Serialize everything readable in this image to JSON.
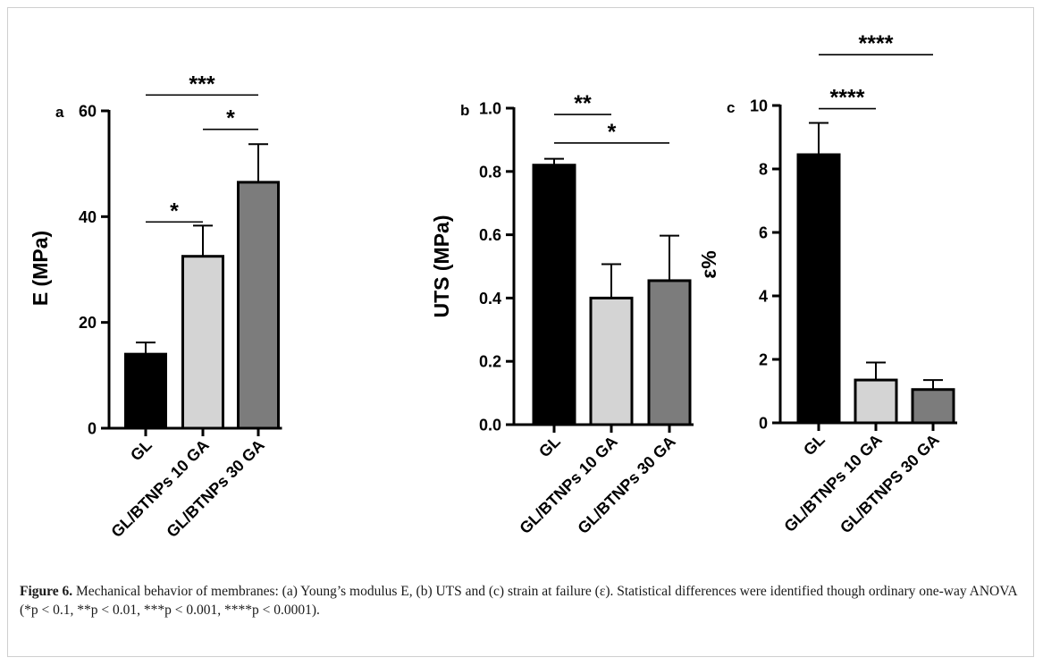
{
  "chart_data": [
    {
      "type": "bar",
      "panel_label": "a",
      "categories": [
        "GL",
        "GL/BTNPs 10 GA",
        "GL/BTNPs 30 GA"
      ],
      "values": [
        14,
        32.5,
        46.5
      ],
      "errors": [
        2.2,
        5.8,
        7.2
      ],
      "colors": [
        "#000000",
        "#d4d4d4",
        "#7c7c7c"
      ],
      "ylabel": "E (MPa)",
      "ylim": [
        0,
        60
      ],
      "yticks": [
        0,
        20,
        40,
        60
      ],
      "ytick_labels": [
        "0",
        "20",
        "40",
        "60"
      ],
      "significance": [
        {
          "from": 0,
          "to": 1,
          "label": "*",
          "level": 39
        },
        {
          "from": 1,
          "to": 2,
          "label": "*",
          "level": 56.5
        },
        {
          "from": 0,
          "to": 2,
          "label": "***",
          "level": 63
        }
      ]
    },
    {
      "type": "bar",
      "panel_label": "b",
      "categories": [
        "GL",
        "GL/BTNPs 10 GA",
        "GL/BTNPs 30 GA"
      ],
      "values": [
        0.82,
        0.4,
        0.455
      ],
      "errors": [
        0.02,
        0.107,
        0.142
      ],
      "colors": [
        "#000000",
        "#d4d4d4",
        "#7c7c7c"
      ],
      "ylabel": "UTS (MPa)",
      "ylim": [
        0,
        1.0
      ],
      "yticks": [
        0,
        0.2,
        0.4,
        0.6,
        0.8,
        1.0
      ],
      "ytick_labels": [
        "0.0",
        "0.2",
        "0.4",
        "0.6",
        "0.8",
        "1.0"
      ],
      "significance": [
        {
          "from": 0,
          "to": 1,
          "label": "**",
          "level": 0.98
        },
        {
          "from": 0,
          "to": 2,
          "label": "*",
          "level": 0.89
        }
      ]
    },
    {
      "type": "bar",
      "panel_label": "c",
      "categories": [
        "GL",
        "GL/BTNPs 10 GA",
        "GL/BTNPS 30 GA"
      ],
      "values": [
        8.45,
        1.35,
        1.05
      ],
      "errors": [
        1.0,
        0.55,
        0.3
      ],
      "colors": [
        "#000000",
        "#d4d4d4",
        "#7c7c7c"
      ],
      "ylabel": "ε%",
      "ylim": [
        0,
        10
      ],
      "yticks": [
        0,
        2,
        4,
        6,
        8,
        10
      ],
      "ytick_labels": [
        "0",
        "2",
        "4",
        "6",
        "8",
        "10"
      ],
      "significance": [
        {
          "from": 0,
          "to": 1,
          "label": "****",
          "level": 9.9
        },
        {
          "from": 0,
          "to": 2,
          "label": "****",
          "level": 11.6
        }
      ]
    }
  ],
  "caption": {
    "label": "Figure 6.",
    "text": " Mechanical behavior of membranes: (a) Young’s modulus E, (b) UTS and (c) strain at failure (ε). Statistical differences were identified though ordinary one-way ANOVA (*p < 0.1, **p < 0.01, ***p < 0.001, ****p < 0.0001)."
  }
}
